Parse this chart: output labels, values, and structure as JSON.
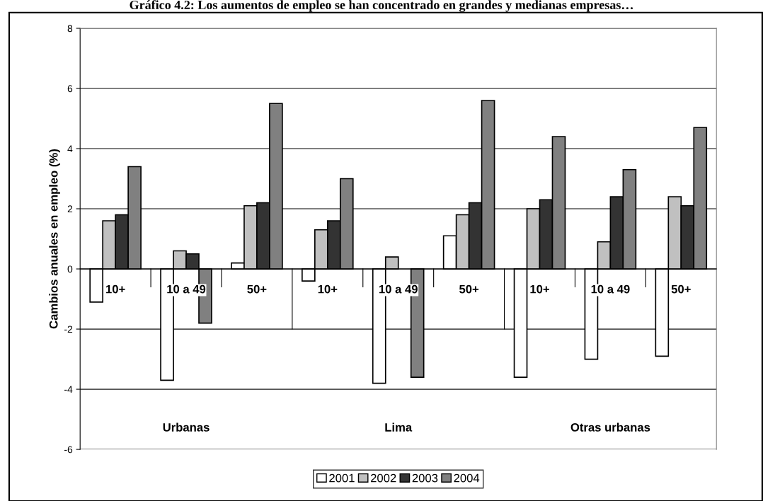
{
  "chart_data": {
    "type": "bar",
    "title": "Gráfico 4.2: Los aumentos de empleo se han concentrado en grandes y medianas empresas…",
    "ylabel": "Cambios anuales en empleo (%)",
    "categories": [
      "10+",
      "10 a 49",
      "50+",
      "10+",
      "10 a 49",
      "50+",
      "10+",
      "10 a 49",
      "50+"
    ],
    "series": [
      {
        "name": "2001",
        "color": "#ffffff",
        "values": [
          -1.1,
          -3.7,
          0.2,
          -0.4,
          -3.8,
          1.1,
          -3.6,
          -3.0,
          -2.9
        ]
      },
      {
        "name": "2002",
        "color": "#c0c0c0",
        "values": [
          1.6,
          0.6,
          2.1,
          1.3,
          0.4,
          1.8,
          2.0,
          0.9,
          2.4
        ]
      },
      {
        "name": "2003",
        "color": "#333333",
        "values": [
          1.8,
          0.5,
          2.2,
          1.6,
          null,
          2.2,
          2.3,
          2.4,
          2.1
        ]
      },
      {
        "name": "2004",
        "color": "#808080",
        "values": [
          3.4,
          -1.8,
          5.5,
          3.0,
          -3.6,
          5.6,
          4.4,
          3.3,
          4.7
        ]
      }
    ],
    "annotations": [
      "Urbanas",
      "Lima",
      "Otras urbanas"
    ],
    "ylim": [
      -6,
      8
    ],
    "yticks": [
      -6,
      -4,
      -2,
      0,
      2,
      4,
      6,
      8
    ],
    "grid": "y",
    "legend": "bottom"
  }
}
